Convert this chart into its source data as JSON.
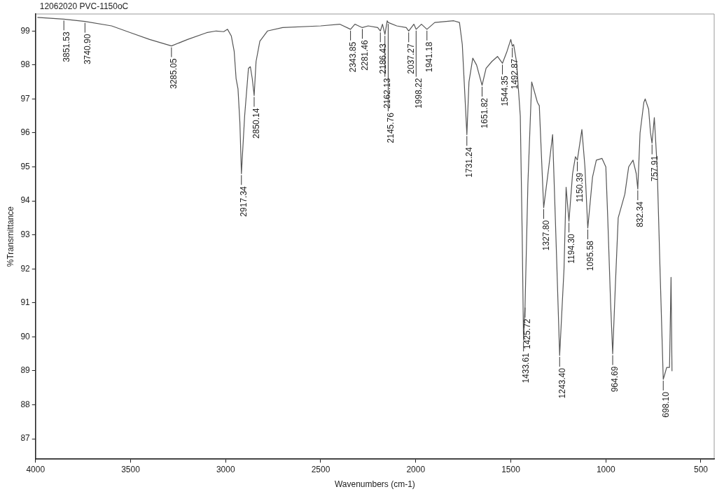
{
  "chart_data": {
    "type": "line",
    "title": "12062020 PVC-1150oC",
    "xlabel": "Wavenumbers (cm-1)",
    "ylabel": "%Transmittance",
    "xlim": [
      4000,
      430
    ],
    "ylim": [
      86.4,
      99.5
    ],
    "xticks": [
      4000,
      3500,
      3000,
      2500,
      2000,
      1500,
      1000,
      500
    ],
    "yticks": [
      87,
      88,
      89,
      90,
      91,
      92,
      93,
      94,
      95,
      96,
      97,
      98,
      99
    ],
    "grid": false,
    "legend": false,
    "marker": "none",
    "line_style": "solid",
    "series": [
      {
        "color": "#555555",
        "x": [
          3990,
          3851,
          3740,
          3600,
          3500,
          3400,
          3285,
          3200,
          3100,
          3050,
          3010,
          2990,
          2970,
          2955,
          2945,
          2935,
          2925,
          2917,
          2900,
          2880,
          2870,
          2860,
          2850,
          2840,
          2820,
          2780,
          2700,
          2500,
          2400,
          2343,
          2320,
          2281,
          2250,
          2200,
          2186,
          2175,
          2162,
          2150,
          2145,
          2100,
          2050,
          2037,
          2010,
          1998,
          1970,
          1941,
          1900,
          1800,
          1770,
          1755,
          1745,
          1731,
          1720,
          1700,
          1680,
          1651,
          1630,
          1600,
          1570,
          1544,
          1520,
          1500,
          1492,
          1485,
          1470,
          1450,
          1440,
          1433,
          1425,
          1410,
          1400,
          1390,
          1360,
          1350,
          1327,
          1300,
          1280,
          1260,
          1243,
          1220,
          1209,
          1194,
          1175,
          1160,
          1150,
          1126,
          1110,
          1095,
          1070,
          1050,
          1020,
          1000,
          990,
          975,
          964,
          950,
          935,
          910,
          900,
          880,
          857,
          840,
          832,
          820,
          800,
          793,
          775,
          765,
          757,
          745,
          730,
          715,
          698,
          690,
          680,
          665,
          657,
          652,
          650
        ],
        "values": [
          99.4,
          99.35,
          99.28,
          99.15,
          98.95,
          98.75,
          98.56,
          98.75,
          98.95,
          99.0,
          98.98,
          99.05,
          98.85,
          98.4,
          97.6,
          97.3,
          96.3,
          94.8,
          96.5,
          97.9,
          97.95,
          97.6,
          97.1,
          98.1,
          98.7,
          99.0,
          99.1,
          99.15,
          99.2,
          99.05,
          99.2,
          99.1,
          99.15,
          99.1,
          99.0,
          99.2,
          98.9,
          99.3,
          99.25,
          99.15,
          99.1,
          99.0,
          99.2,
          99.05,
          99.2,
          99.05,
          99.25,
          99.3,
          99.25,
          98.6,
          97.5,
          95.95,
          97.5,
          98.2,
          98.0,
          97.4,
          97.9,
          98.1,
          98.25,
          98.05,
          98.4,
          98.75,
          98.55,
          98.6,
          98.1,
          96.5,
          93.0,
          89.9,
          90.9,
          94.5,
          96.0,
          97.5,
          96.9,
          96.8,
          93.8,
          95.0,
          95.95,
          92.5,
          89.45,
          92.0,
          94.4,
          93.4,
          94.8,
          95.3,
          95.2,
          96.1,
          95.0,
          93.2,
          94.7,
          95.2,
          95.25,
          95.0,
          93.5,
          91.0,
          89.5,
          91.5,
          93.5,
          94.0,
          94.2,
          95.0,
          95.2,
          94.8,
          94.35,
          96.0,
          96.9,
          97.0,
          96.7,
          96.0,
          95.7,
          96.45,
          95.0,
          92.0,
          88.75,
          88.9,
          89.1,
          89.1,
          91.75,
          89.0,
          89.0
        ]
      }
    ],
    "annotations": [
      {
        "text": "3851.53",
        "x": 3851,
        "y": 99.35
      },
      {
        "text": "3740.90",
        "x": 3740,
        "y": 99.28
      },
      {
        "text": "3285.05",
        "x": 3285,
        "y": 98.56
      },
      {
        "text": "2917.34",
        "x": 2917,
        "y": 94.8
      },
      {
        "text": "2850.14",
        "x": 2850,
        "y": 97.1
      },
      {
        "text": "2343.85",
        "x": 2343,
        "y": 99.05
      },
      {
        "text": "2281.46",
        "x": 2281,
        "y": 99.1
      },
      {
        "text": "2186.43",
        "x": 2186,
        "y": 99.0
      },
      {
        "text": "2162.13",
        "x": 2162,
        "y": 98.9
      },
      {
        "text": "2145.76",
        "x": 2145,
        "y": 99.25
      },
      {
        "text": "2037.27",
        "x": 2037,
        "y": 99.0
      },
      {
        "text": "1998.22",
        "x": 1998,
        "y": 99.05
      },
      {
        "text": "1941.18",
        "x": 1941,
        "y": 99.05
      },
      {
        "text": "1731.24",
        "x": 1731,
        "y": 95.95
      },
      {
        "text": "1651.82",
        "x": 1651,
        "y": 97.4
      },
      {
        "text": "1544.35",
        "x": 1544,
        "y": 98.05
      },
      {
        "text": "1492.87",
        "x": 1492,
        "y": 98.55
      },
      {
        "text": "1433.61",
        "x": 1433,
        "y": 89.9
      },
      {
        "text": "1425.72",
        "x": 1425,
        "y": 90.9
      },
      {
        "text": "1327.80",
        "x": 1327,
        "y": 93.8
      },
      {
        "text": "1243.40",
        "x": 1243,
        "y": 89.45
      },
      {
        "text": "1194.30",
        "x": 1194,
        "y": 93.4
      },
      {
        "text": "1150.39",
        "x": 1150,
        "y": 95.2
      },
      {
        "text": "1095.58",
        "x": 1095,
        "y": 93.2
      },
      {
        "text": "964.69",
        "x": 964,
        "y": 89.5
      },
      {
        "text": "832.34",
        "x": 832,
        "y": 94.35
      },
      {
        "text": "757.91",
        "x": 757,
        "y": 95.7
      },
      {
        "text": "698.10",
        "x": 698,
        "y": 88.75
      }
    ]
  }
}
